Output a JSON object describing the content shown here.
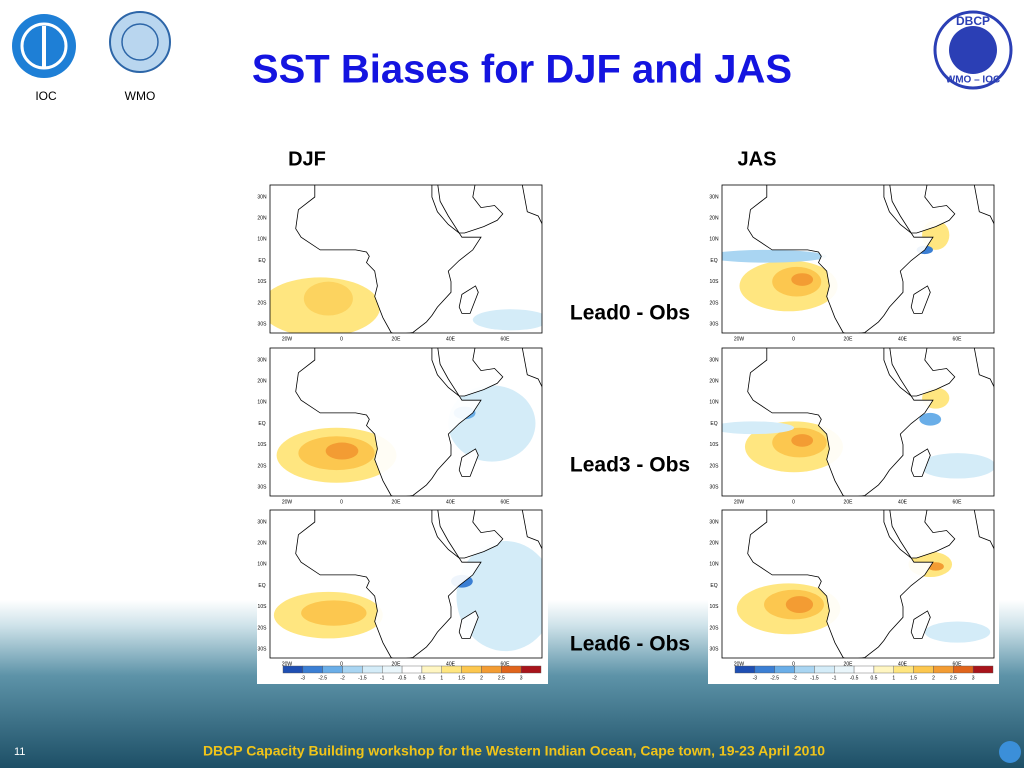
{
  "header": {
    "title": "SST Biases for DJF and JAS",
    "logos": [
      "IOC",
      "WMO"
    ],
    "dbcp_logo": {
      "top": "DBCP",
      "bottom": "WMO – IOC"
    }
  },
  "columns": [
    "DJF",
    "JAS"
  ],
  "rows": [
    "Lead0 - Obs",
    "Lead3 - Obs",
    "Lead6 - Obs"
  ],
  "map_axes": {
    "lat_labels": [
      "30N",
      "20N",
      "10N",
      "EQ",
      "10S",
      "20S",
      "30S"
    ],
    "lon_labels": [
      "20W",
      "0",
      "20E",
      "40E",
      "60E"
    ]
  },
  "colorbar_labels": [
    -3,
    -2.5,
    -2,
    -1.5,
    -1,
    -0.5,
    0.5,
    1,
    1.5,
    2,
    2.5,
    3
  ],
  "footer": {
    "text": "DBCP Capacity Building workshop for the Western Indian Ocean, Cape town, 19-23 April 2010",
    "page_number": "11"
  }
}
